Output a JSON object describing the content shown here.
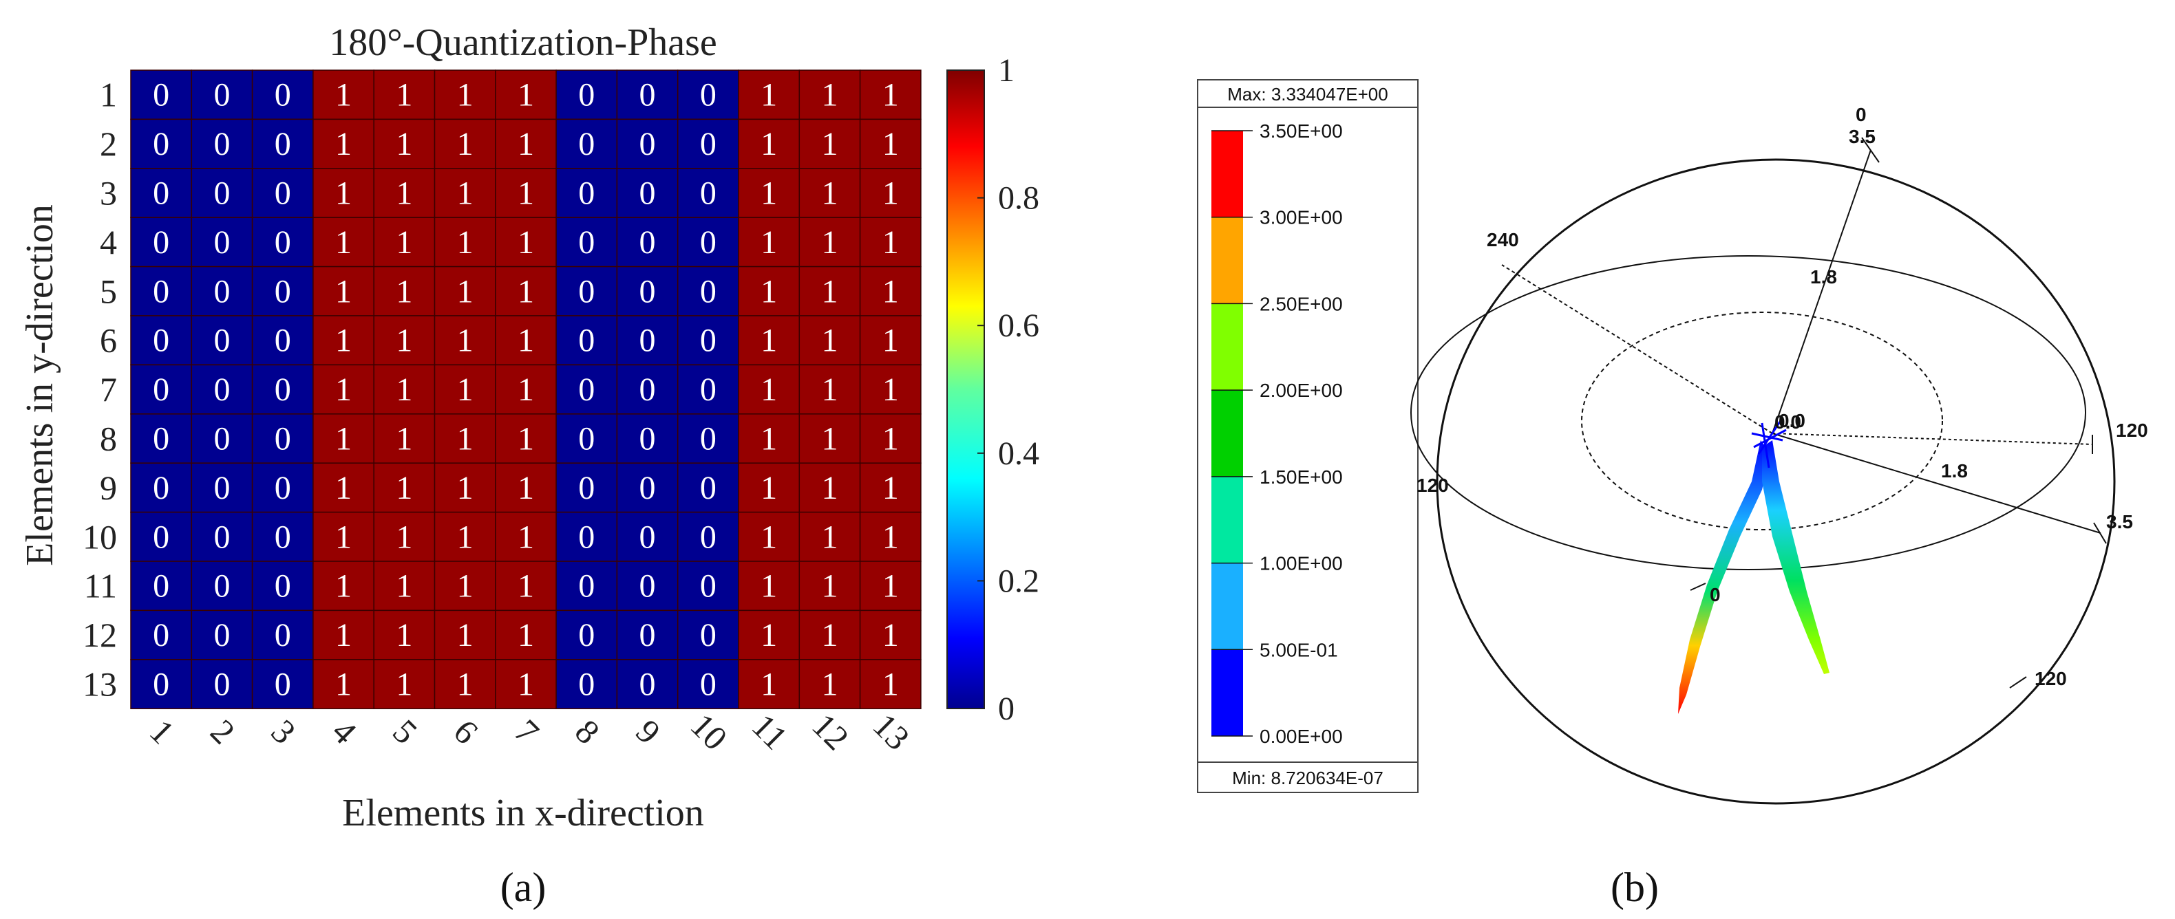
{
  "panel_a": {
    "caption": "(a)",
    "title": "180°-Quantization-Phase",
    "xlabel": "Elements in x-direction",
    "ylabel": "Elements in y-direction"
  },
  "panel_b": {
    "caption": "(b)",
    "legend_max": "Max: 3.334047E+00",
    "legend_min": "Min: 8.720634E-07",
    "legend_labels": [
      "3.50E+00",
      "3.00E+00",
      "2.50E+00",
      "2.00E+00",
      "1.50E+00",
      "1.00E+00",
      "5.00E-01",
      "0.00E+00"
    ],
    "legend_colors": [
      "#ff0000",
      "#ffa500",
      "#80ff00",
      "#00d000",
      "#00e8a0",
      "#1ab0ff",
      "#0000ff"
    ],
    "sphere_labels": {
      "top_angle": "0",
      "top_radius": "3.5",
      "upper_left_angle": "240",
      "ring_radius_top": "1.8",
      "center_a": "0.0",
      "center_b": "0.0",
      "right_angle": "120",
      "left_angle": "120",
      "right_radius_mid": "1.8",
      "right_radius_outer": "3.5",
      "lower_zero": "0",
      "bottom_angle": "120"
    }
  },
  "chart_data": [
    {
      "type": "heatmap",
      "title": "180°-Quantization-Phase",
      "xlabel": "Elements in x-direction",
      "ylabel": "Elements in y-direction",
      "x": [
        "1",
        "2",
        "3",
        "4",
        "5",
        "6",
        "7",
        "8",
        "9",
        "10",
        "11",
        "12",
        "13"
      ],
      "y": [
        "1",
        "2",
        "3",
        "4",
        "5",
        "6",
        "7",
        "8",
        "9",
        "10",
        "11",
        "12",
        "13"
      ],
      "values": [
        [
          0,
          0,
          0,
          1,
          1,
          1,
          1,
          0,
          0,
          0,
          1,
          1,
          1
        ],
        [
          0,
          0,
          0,
          1,
          1,
          1,
          1,
          0,
          0,
          0,
          1,
          1,
          1
        ],
        [
          0,
          0,
          0,
          1,
          1,
          1,
          1,
          0,
          0,
          0,
          1,
          1,
          1
        ],
        [
          0,
          0,
          0,
          1,
          1,
          1,
          1,
          0,
          0,
          0,
          1,
          1,
          1
        ],
        [
          0,
          0,
          0,
          1,
          1,
          1,
          1,
          0,
          0,
          0,
          1,
          1,
          1
        ],
        [
          0,
          0,
          0,
          1,
          1,
          1,
          1,
          0,
          0,
          0,
          1,
          1,
          1
        ],
        [
          0,
          0,
          0,
          1,
          1,
          1,
          1,
          0,
          0,
          0,
          1,
          1,
          1
        ],
        [
          0,
          0,
          0,
          1,
          1,
          1,
          1,
          0,
          0,
          0,
          1,
          1,
          1
        ],
        [
          0,
          0,
          0,
          1,
          1,
          1,
          1,
          0,
          0,
          0,
          1,
          1,
          1
        ],
        [
          0,
          0,
          0,
          1,
          1,
          1,
          1,
          0,
          0,
          0,
          1,
          1,
          1
        ],
        [
          0,
          0,
          0,
          1,
          1,
          1,
          1,
          0,
          0,
          0,
          1,
          1,
          1
        ],
        [
          0,
          0,
          0,
          1,
          1,
          1,
          1,
          0,
          0,
          0,
          1,
          1,
          1
        ],
        [
          0,
          0,
          0,
          1,
          1,
          1,
          1,
          0,
          0,
          0,
          1,
          1,
          1
        ]
      ],
      "colorbar_ticks": [
        "0",
        "0.2",
        "0.4",
        "0.6",
        "0.8",
        "1"
      ],
      "colorbar_range": [
        0,
        1
      ],
      "colormap": "jet",
      "colors": {
        "zero": "#000090",
        "one": "#960000"
      }
    },
    {
      "type": "other",
      "description_kind": "3D far-field radiation pattern with two lobes",
      "legend_range": [
        0,
        3.5
      ],
      "max": 3.334047,
      "min": 8.720634e-07
    }
  ]
}
